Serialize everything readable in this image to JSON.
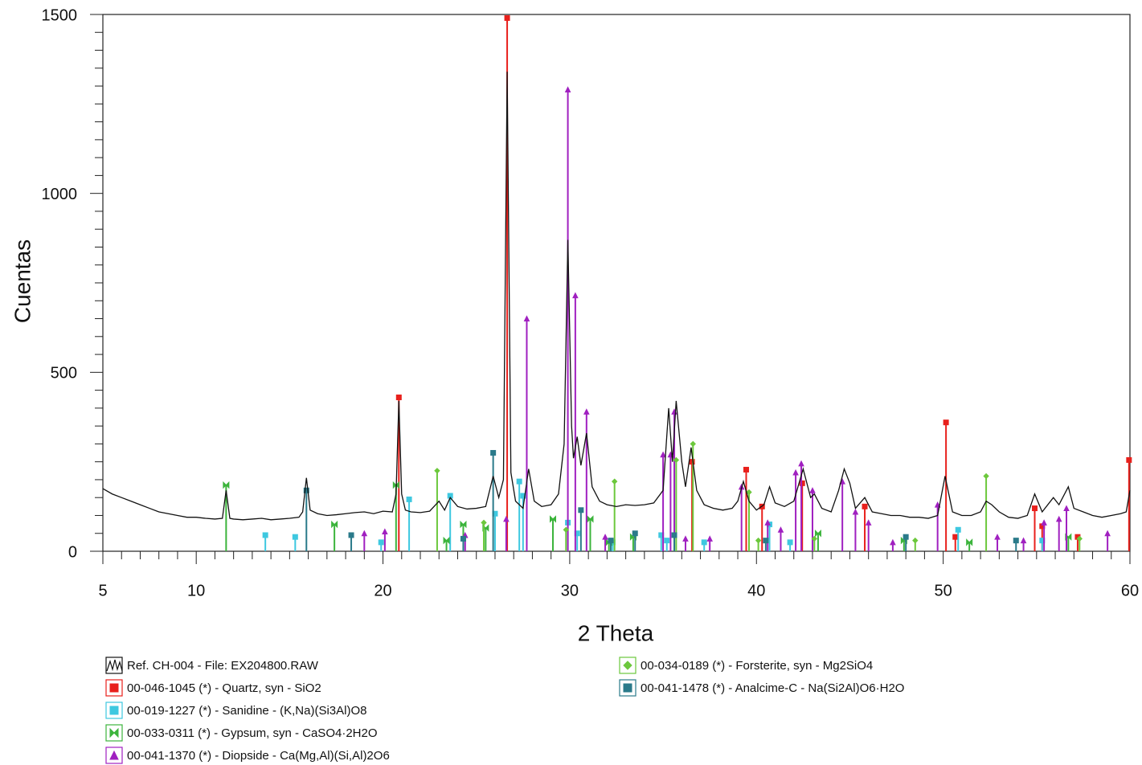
{
  "chart_data": {
    "type": "xrd",
    "xlabel": "2 Theta",
    "ylabel": "Cuentas",
    "xlim": [
      5,
      60
    ],
    "ylim": [
      0,
      1500
    ],
    "xticks": [
      5,
      10,
      20,
      30,
      40,
      50,
      60
    ],
    "yticks": [
      0,
      500,
      1000,
      1500
    ],
    "xminorticks": [
      6,
      7,
      8,
      9,
      11,
      12,
      13,
      14,
      15,
      16,
      17,
      18,
      19,
      21,
      22,
      23,
      24,
      25,
      26,
      27,
      28,
      29,
      31,
      32,
      33,
      34,
      35,
      36,
      37,
      38,
      39,
      41,
      42,
      43,
      44,
      45,
      46,
      47,
      48,
      49,
      51,
      52,
      53,
      54,
      55,
      56,
      57,
      58,
      59
    ],
    "yminorticks": [
      50,
      100,
      150,
      200,
      250,
      300,
      350,
      400,
      450,
      550,
      600,
      650,
      700,
      750,
      800,
      850,
      900,
      950,
      1050,
      1100,
      1150,
      1200,
      1250,
      1300,
      1350,
      1400,
      1450
    ],
    "series": [
      {
        "name": "Ref. CH-004 - File: EX204800.RAW",
        "style": "line",
        "color": "#111111",
        "x": [
          5,
          5.5,
          6,
          6.5,
          7,
          7.5,
          8,
          8.5,
          9,
          9.5,
          10,
          10.5,
          11,
          11.4,
          11.6,
          11.8,
          12,
          12.5,
          13,
          13.5,
          14,
          14.5,
          15,
          15.5,
          15.7,
          15.9,
          16.1,
          16.5,
          17,
          17.5,
          18,
          18.5,
          19,
          19.5,
          20,
          20.5,
          20.7,
          20.85,
          21,
          21.2,
          21.5,
          22,
          22.5,
          23,
          23.3,
          23.6,
          24,
          24.5,
          25,
          25.5,
          25.9,
          26.2,
          26.45,
          26.65,
          26.85,
          27.1,
          27.5,
          27.8,
          28.1,
          28.5,
          29,
          29.4,
          29.7,
          29.9,
          30.1,
          30.2,
          30.4,
          30.6,
          30.9,
          31.2,
          31.6,
          32,
          32.5,
          33,
          33.5,
          34,
          34.5,
          35,
          35.3,
          35.5,
          35.7,
          36,
          36.2,
          36.5,
          36.8,
          37.2,
          37.7,
          38.2,
          38.7,
          39,
          39.3,
          39.6,
          40,
          40.4,
          40.7,
          41,
          41.5,
          42,
          42.5,
          42.9,
          43.1,
          43.5,
          44,
          44.4,
          44.7,
          45,
          45.3,
          45.8,
          46.2,
          46.7,
          47.2,
          47.7,
          48.2,
          48.7,
          49.2,
          49.7,
          50.1,
          50.5,
          51,
          51.5,
          52,
          52.3,
          52.6,
          53,
          53.5,
          54,
          54.5,
          54.9,
          55.3,
          55.9,
          56.2,
          56.7,
          57,
          57.5,
          58,
          58.5,
          59,
          59.5,
          59.8,
          60
        ],
        "values": [
          175,
          160,
          150,
          140,
          130,
          120,
          110,
          105,
          100,
          95,
          95,
          92,
          90,
          92,
          170,
          92,
          90,
          88,
          90,
          92,
          88,
          90,
          92,
          95,
          110,
          205,
          115,
          105,
          100,
          102,
          105,
          108,
          110,
          105,
          112,
          110,
          160,
          420,
          160,
          115,
          110,
          108,
          112,
          140,
          115,
          150,
          125,
          118,
          120,
          125,
          210,
          150,
          200,
          1340,
          220,
          140,
          120,
          230,
          140,
          125,
          130,
          160,
          300,
          870,
          350,
          260,
          320,
          240,
          330,
          180,
          140,
          130,
          125,
          130,
          128,
          130,
          135,
          170,
          400,
          250,
          420,
          250,
          180,
          290,
          170,
          130,
          120,
          115,
          120,
          140,
          195,
          140,
          115,
          130,
          180,
          135,
          125,
          140,
          230,
          150,
          160,
          120,
          110,
          170,
          230,
          190,
          120,
          150,
          110,
          105,
          100,
          100,
          95,
          95,
          92,
          100,
          210,
          110,
          100,
          100,
          110,
          140,
          130,
          110,
          95,
          92,
          100,
          160,
          110,
          150,
          130,
          180,
          120,
          110,
          100,
          95,
          100,
          105,
          110,
          170
        ]
      },
      {
        "name": "00-046-1045 (*) - Quartz, syn - SiO2",
        "style": "stick",
        "marker": "square",
        "color": "#e8201c",
        "x": [
          20.85,
          26.65,
          36.55,
          39.45,
          40.3,
          42.45,
          45.8,
          50.15,
          50.65,
          54.9,
          55.3,
          57.2,
          59.95
        ],
        "values": [
          430,
          1490,
          250,
          228,
          125,
          190,
          125,
          360,
          40,
          120,
          70,
          40,
          255
        ]
      },
      {
        "name": "00-019-1227 (*) - Sanidine - (K,Na)(Si3Al)O8",
        "style": "stick",
        "marker": "square",
        "color": "#3ec8e0",
        "x": [
          13.7,
          15.3,
          19.9,
          21.4,
          23.6,
          26.0,
          27.3,
          27.5,
          29.9,
          30.4,
          32.3,
          34.9,
          35.2,
          37.2,
          40.7,
          41.8,
          50.8,
          55.3
        ],
        "values": [
          45,
          40,
          25,
          145,
          155,
          105,
          195,
          155,
          80,
          50,
          25,
          45,
          30,
          25,
          75,
          25,
          60,
          30
        ]
      },
      {
        "name": "00-033-0311 (*) - Gypsum, syn - CaSO4·2H2O",
        "style": "stick",
        "marker": "bowtie",
        "color": "#3cb43c",
        "x": [
          11.6,
          17.4,
          20.7,
          23.4,
          24.3,
          25.5,
          29.1,
          31.1,
          32.1,
          33.4,
          43.3,
          47.9,
          51.4,
          56.7
        ],
        "values": [
          185,
          75,
          185,
          30,
          75,
          65,
          90,
          90,
          25,
          40,
          50,
          30,
          25,
          40
        ]
      },
      {
        "name": "00-041-1370 (*) - Diopside - Ca(Mg,Al)(Si,Al)2O6",
        "style": "stick",
        "marker": "triangle",
        "color": "#a020c0",
        "x": [
          19.0,
          20.1,
          24.4,
          26.6,
          27.7,
          29.9,
          30.3,
          30.9,
          31.9,
          35.0,
          35.4,
          35.6,
          36.2,
          37.5,
          39.2,
          40.6,
          41.3,
          42.1,
          42.4,
          43.0,
          44.6,
          45.3,
          46.0,
          47.3,
          49.7,
          52.9,
          54.3,
          55.4,
          56.2,
          56.6,
          58.8
        ],
        "values": [
          50,
          55,
          45,
          90,
          650,
          1290,
          715,
          390,
          40,
          270,
          270,
          390,
          35,
          35,
          180,
          80,
          60,
          220,
          245,
          170,
          195,
          110,
          80,
          25,
          130,
          40,
          30,
          80,
          90,
          120,
          50
        ]
      },
      {
        "name": "00-034-0189 (*) - Forsterite, syn - Mg2SiO4",
        "style": "stick",
        "marker": "diamond",
        "color": "#6cc83c",
        "x": [
          22.9,
          25.4,
          29.8,
          32.4,
          35.7,
          36.6,
          39.6,
          40.1,
          43.1,
          48.5,
          52.3,
          57.3
        ],
        "values": [
          225,
          80,
          60,
          195,
          255,
          300,
          165,
          30,
          35,
          30,
          210,
          35
        ]
      },
      {
        "name": "00-041-1478 (*) - Analcime-C - Na(Si2Al)O6·H2O",
        "style": "stick",
        "marker": "square",
        "color": "#2a7a8a",
        "x": [
          15.9,
          18.3,
          24.3,
          25.9,
          30.6,
          32.2,
          33.5,
          35.6,
          40.5,
          48.0,
          53.9
        ],
        "values": [
          170,
          45,
          35,
          275,
          115,
          30,
          50,
          45,
          30,
          40,
          30
        ]
      }
    ]
  }
}
